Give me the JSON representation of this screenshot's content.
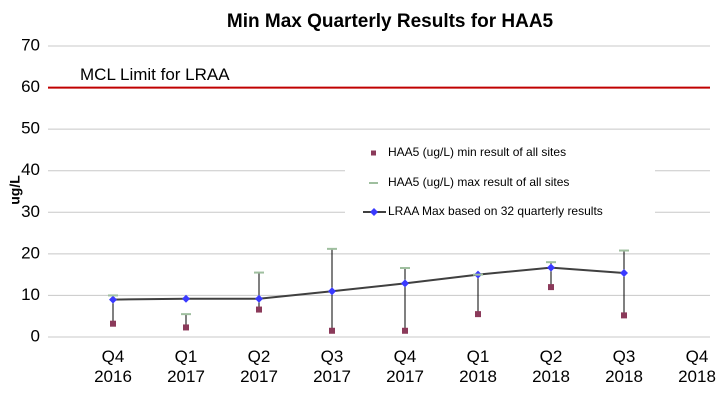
{
  "chart_data": {
    "type": "line",
    "title": "Min Max Quarterly Results for HAA5",
    "y_label": "ug/L",
    "categories": [
      "Q4 2016",
      "Q1 2017",
      "Q2 2017",
      "Q3 2017",
      "Q4 2017",
      "Q1 2018",
      "Q2 2018",
      "Q3 2018",
      "Q4 2018"
    ],
    "series": [
      {
        "name": "HAA5 (ug/L) min result of all sites",
        "color": "#8b3a5a",
        "values": [
          3.2,
          2.3,
          6.6,
          1.5,
          1.5,
          5.5,
          12,
          5.2,
          null
        ]
      },
      {
        "name": "HAA5 (ug/L) max result of all sites",
        "color": "#9fbf9f",
        "values": [
          10,
          5.5,
          15.5,
          21.2,
          16.6,
          15,
          18,
          20.8,
          null
        ]
      },
      {
        "name": "LRAA Max based on 32 quarterly results",
        "color": "#404040",
        "marker_color": "#3a3aff",
        "values": [
          9,
          9.2,
          9.2,
          11,
          12.9,
          15,
          16.7,
          15.4,
          null
        ]
      }
    ],
    "reference_line": {
      "value": 60,
      "label": "MCL Limit for LRAA",
      "color": "#c00000"
    },
    "ylim": [
      0,
      70
    ],
    "yticks": [
      0,
      10,
      20,
      30,
      40,
      50,
      60,
      70
    ],
    "grid": true
  }
}
